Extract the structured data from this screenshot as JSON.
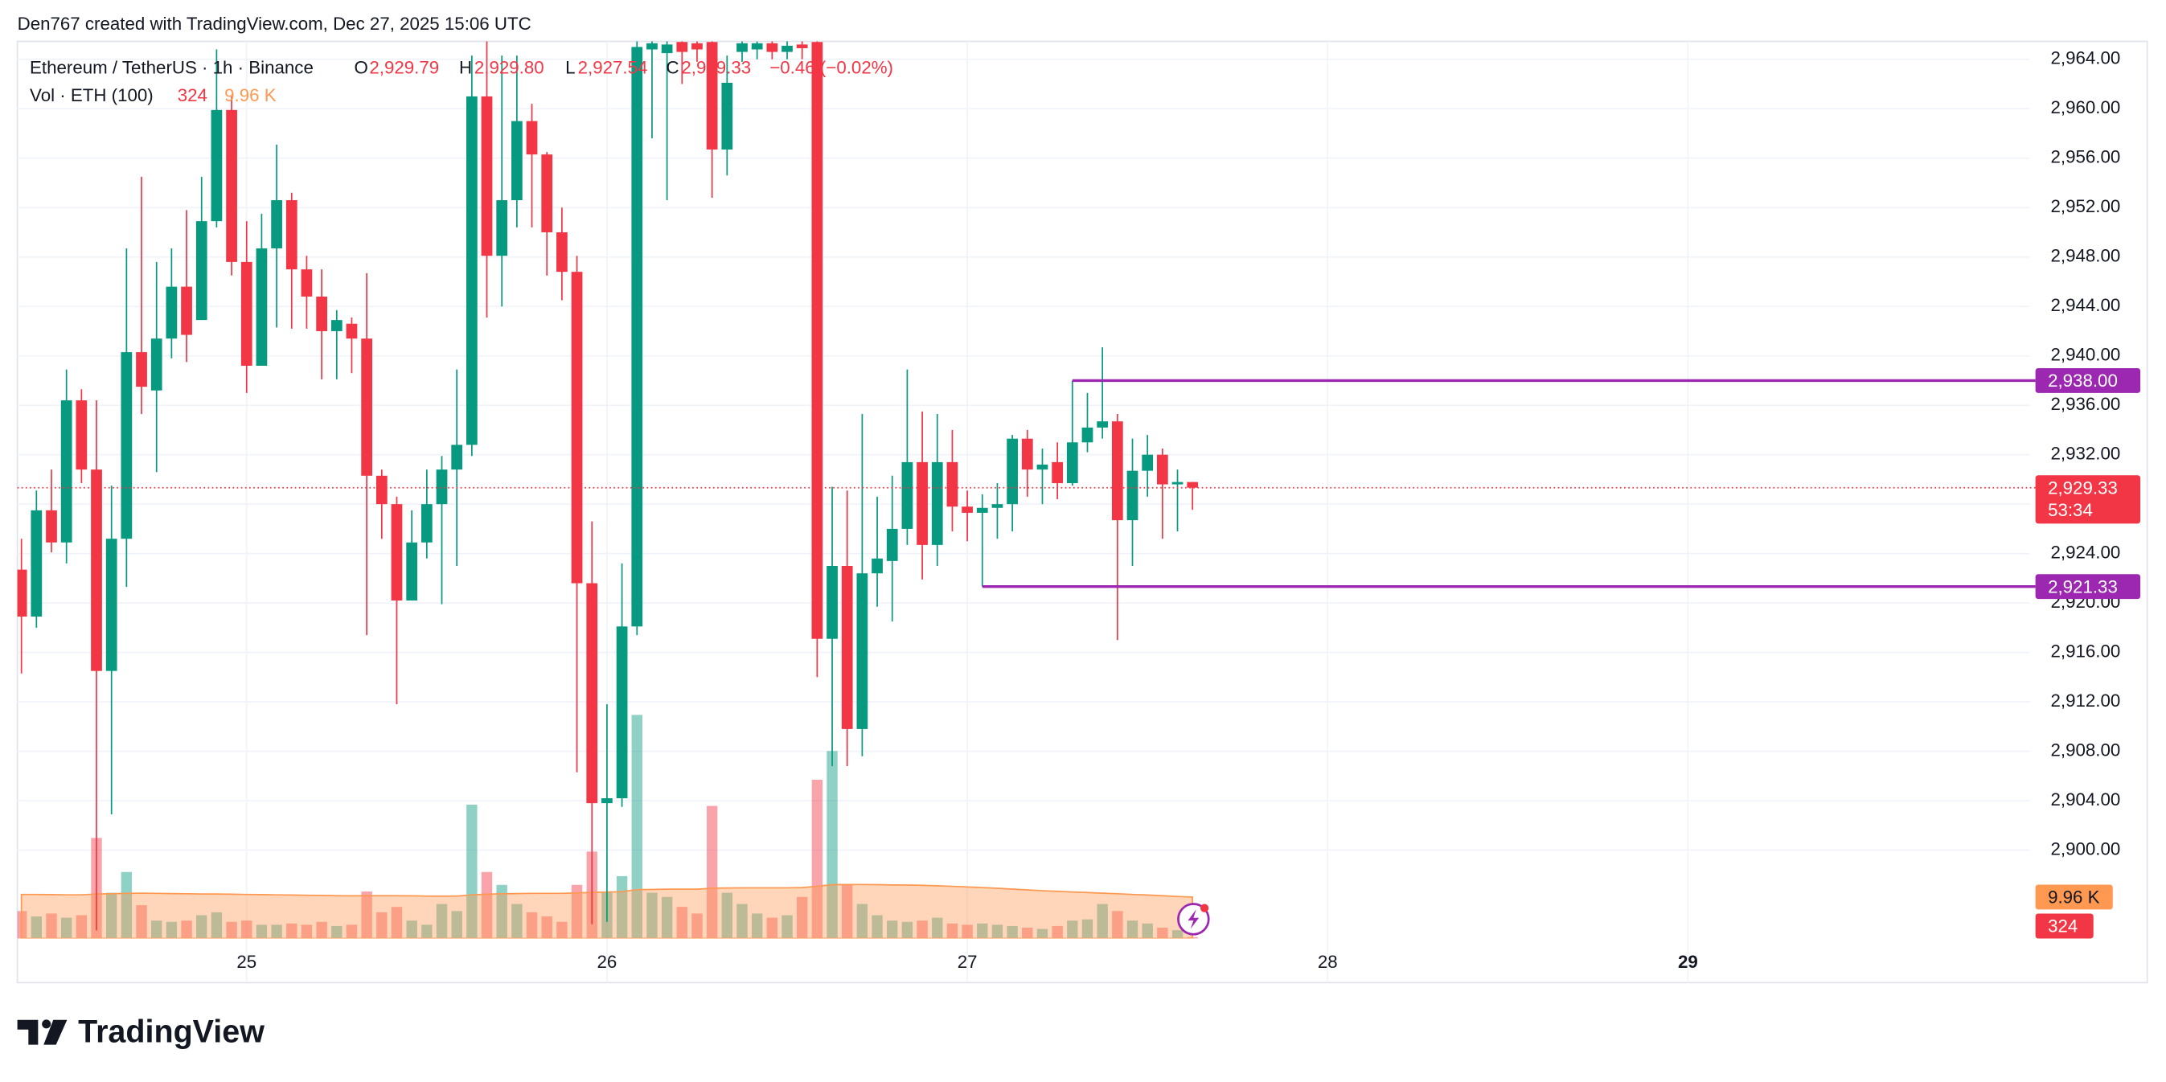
{
  "header": {
    "credit": "Den767 created with TradingView.com, Dec 27, 2025 15:06 UTC"
  },
  "footer": {
    "brand": "TradingView"
  },
  "chart_data": {
    "type": "candlestick",
    "legend": {
      "symbol": "Ethereum / TetherUS · 1h · Binance",
      "open_key": "O",
      "high_key": "H",
      "low_key": "L",
      "close_key": "C",
      "open_label": "2,929.79",
      "high_label": "2,929.80",
      "low_label": "2,927.54",
      "close_label": "2,929.33",
      "change": "−0.46 (−0.02%)",
      "volume_title": "Vol · ETH (100)"
    },
    "categories": [
      null,
      null,
      null,
      null,
      null,
      null,
      null,
      null,
      null,
      null,
      null,
      null,
      null,
      null,
      null,
      "25",
      null,
      null,
      null,
      null,
      null,
      null,
      null,
      null,
      null,
      null,
      null,
      null,
      null,
      null,
      null,
      null,
      null,
      null,
      null,
      null,
      null,
      null,
      null,
      "26",
      null,
      null,
      null,
      null,
      null,
      null,
      null,
      null,
      null,
      null,
      null,
      null,
      null,
      null,
      null,
      null,
      null,
      null,
      null,
      null,
      null,
      null,
      null,
      "27",
      null,
      null,
      null,
      null,
      null,
      null,
      null,
      null,
      null,
      null,
      null,
      null,
      null,
      null,
      null,
      null,
      null,
      null,
      null,
      null,
      null,
      null,
      null,
      "28",
      null,
      null,
      null,
      null,
      null,
      null,
      null,
      null,
      null,
      null,
      null,
      null,
      null,
      null,
      null,
      null,
      null,
      null,
      null,
      null,
      null,
      null,
      null,
      "29",
      null,
      null,
      null,
      null,
      null,
      null,
      null,
      null,
      null,
      null,
      null,
      null,
      null,
      null,
      null,
      null,
      null,
      null,
      null,
      null,
      null,
      null
    ],
    "open": [
      2922.7,
      2918.9,
      2927.5,
      2924.9,
      2936.4,
      2930.8,
      2914.5,
      2925.2,
      2940.3,
      2937.2,
      2941.4,
      2945.6,
      2942.9,
      2950.9,
      2959.9,
      2947.6,
      2939.2,
      2948.7,
      2952.6,
      2947.0,
      2944.8,
      2942.0,
      2942.6,
      2941.4,
      2930.3,
      2928.0,
      2920.2,
      2924.9,
      2928.0,
      2930.8,
      2932.8,
      2961.0,
      2948.1,
      2952.6,
      2959.0,
      2956.3,
      2950.0,
      2946.8,
      2921.6,
      2903.8,
      2904.2,
      2918.1,
      2964.8,
      2964.5,
      2965.4,
      2965.3,
      2965.4,
      2956.7,
      2964.6,
      2964.8,
      2965.3,
      2964.6,
      2965.2,
      2965.4,
      2917.1,
      2923.0,
      2909.8,
      2922.4,
      2923.4,
      2926.0,
      2931.4,
      2924.7,
      2931.4,
      2927.8,
      2927.3,
      2927.7,
      2928.0,
      2933.3,
      2930.8,
      2931.4,
      2929.7,
      2933.0,
      2934.2,
      2934.7,
      2926.7,
      2930.7,
      2932.0,
      2929.6,
      2929.79,
      null,
      null,
      null,
      null,
      null,
      null,
      null,
      null,
      null,
      null,
      null,
      null,
      null,
      null,
      null,
      null,
      null,
      null,
      null,
      null,
      null,
      null,
      null,
      null,
      null,
      null,
      null,
      null,
      null,
      null,
      null,
      null,
      null,
      null,
      null,
      null,
      null,
      null,
      null,
      null,
      null,
      null,
      null,
      null,
      null,
      null,
      null,
      null,
      null,
      null,
      null,
      null,
      null,
      null,
      null
    ],
    "high": [
      2925.2,
      2929.1,
      2930.8,
      2938.9,
      2937.3,
      2936.4,
      2929.5,
      2948.7,
      2954.5,
      2947.6,
      2948.7,
      2951.8,
      2954.5,
      2964.8,
      2961.0,
      2950.9,
      2951.5,
      2957.1,
      2953.2,
      2948.1,
      2947.0,
      2943.7,
      2943.1,
      2946.7,
      2930.8,
      2928.6,
      2927.5,
      2930.8,
      2931.9,
      2938.9,
      2964.3,
      2966.0,
      2964.3,
      2964.3,
      2960.4,
      2956.5,
      2952.0,
      2948.1,
      2926.6,
      2911.8,
      2923.2,
      2966.0,
      2966.0,
      2966.0,
      2966.0,
      2966.0,
      2966.0,
      2964.3,
      2966.0,
      2966.0,
      2966.0,
      2966.0,
      2966.0,
      2966.0,
      2929.4,
      2929.1,
      2935.3,
      2928.6,
      2930.3,
      2938.9,
      2935.5,
      2935.3,
      2934.0,
      2929.1,
      2928.8,
      2929.7,
      2933.6,
      2934.0,
      2932.5,
      2933.0,
      2938.0,
      2937.0,
      2940.7,
      2935.3,
      2933.3,
      2933.6,
      2932.5,
      2930.8,
      2929.8,
      null,
      null,
      null,
      null,
      null,
      null,
      null,
      null,
      null,
      null,
      null,
      null,
      null,
      null,
      null,
      null,
      null,
      null,
      null,
      null,
      null,
      null,
      null,
      null,
      null,
      null,
      null,
      null,
      null,
      null,
      null,
      null,
      null,
      null,
      null,
      null,
      null,
      null,
      null,
      null,
      null,
      null,
      null,
      null,
      null,
      null,
      null,
      null,
      null,
      null,
      null,
      null,
      null,
      null,
      null
    ],
    "low": [
      2914.3,
      2918.0,
      2924.1,
      2923.2,
      2929.7,
      2893.5,
      2902.9,
      2921.3,
      2935.3,
      2930.6,
      2939.8,
      2939.5,
      2942.9,
      2950.4,
      2946.5,
      2937.0,
      2939.2,
      2942.3,
      2942.2,
      2942.2,
      2938.1,
      2938.1,
      2938.6,
      2917.4,
      2925.2,
      2911.8,
      2920.2,
      2923.6,
      2919.9,
      2923.0,
      2931.9,
      2943.1,
      2944.0,
      2950.4,
      2950.4,
      2946.5,
      2944.5,
      2906.3,
      2894.0,
      2894.2,
      2903.5,
      2917.4,
      2957.6,
      2952.6,
      2962.0,
      2963.8,
      2952.8,
      2954.6,
      2963.8,
      2964.0,
      2964.0,
      2964.0,
      2964.0,
      2914.0,
      2906.8,
      2906.8,
      2907.6,
      2919.7,
      2918.5,
      2924.7,
      2921.9,
      2923.0,
      2925.8,
      2925.0,
      2921.33,
      2925.2,
      2925.8,
      2928.6,
      2928.0,
      2928.4,
      2929.5,
      2932.2,
      2933.3,
      2917.0,
      2923.0,
      2928.6,
      2925.2,
      2925.8,
      2927.54,
      null,
      null,
      null,
      null,
      null,
      null,
      null,
      null,
      null,
      null,
      null,
      null,
      null,
      null,
      null,
      null,
      null,
      null,
      null,
      null,
      null,
      null,
      null,
      null,
      null,
      null,
      null,
      null,
      null,
      null,
      null,
      null,
      null,
      null,
      null,
      null,
      null,
      null,
      null,
      null,
      null,
      null,
      null,
      null,
      null,
      null,
      null,
      null,
      null,
      null,
      null,
      null,
      null,
      null,
      null
    ],
    "close": [
      2918.9,
      2927.5,
      2924.9,
      2936.4,
      2930.8,
      2914.5,
      2925.2,
      2940.3,
      2937.5,
      2941.4,
      2945.6,
      2941.7,
      2950.9,
      2959.9,
      2947.6,
      2939.2,
      2948.7,
      2952.6,
      2947.0,
      2944.8,
      2942.0,
      2942.9,
      2941.4,
      2930.3,
      2928.0,
      2920.2,
      2924.9,
      2928.0,
      2930.8,
      2932.8,
      2961.0,
      2948.1,
      2952.6,
      2959.0,
      2956.3,
      2950.0,
      2946.8,
      2921.6,
      2903.8,
      2904.2,
      2918.1,
      2965.0,
      2965.3,
      2965.2,
      2964.6,
      2964.8,
      2956.7,
      2962.1,
      2965.3,
      2965.3,
      2964.6,
      2965.1,
      2964.9,
      2917.1,
      2923.0,
      2909.8,
      2922.4,
      2923.6,
      2926.0,
      2931.4,
      2924.7,
      2931.4,
      2927.8,
      2927.3,
      2927.7,
      2928.0,
      2933.3,
      2930.8,
      2931.2,
      2929.7,
      2933.0,
      2934.2,
      2934.7,
      2926.7,
      2930.7,
      2932.0,
      2929.6,
      2929.79,
      2929.33,
      null,
      null,
      null,
      null,
      null,
      null,
      null,
      null,
      null,
      null,
      null,
      null,
      null,
      null,
      null,
      null,
      null,
      null,
      null,
      null,
      null,
      null,
      null,
      null,
      null,
      null,
      null,
      null,
      null,
      null,
      null,
      null,
      null,
      null,
      null,
      null,
      null,
      null,
      null,
      null,
      null,
      null,
      null,
      null,
      null,
      null,
      null,
      null,
      null,
      null,
      null,
      null,
      null,
      null,
      null
    ],
    "volume": [
      6600,
      5300,
      6000,
      5000,
      5600,
      24200,
      11000,
      16000,
      8000,
      4300,
      4000,
      4300,
      5600,
      6300,
      4000,
      4300,
      3300,
      3300,
      3600,
      3300,
      4000,
      3000,
      3300,
      11300,
      6300,
      7600,
      4300,
      3300,
      8300,
      6600,
      32200,
      16000,
      12900,
      8300,
      6300,
      5300,
      4000,
      12900,
      20900,
      11000,
      15000,
      53800,
      11000,
      10000,
      7600,
      6000,
      31900,
      11000,
      8300,
      6000,
      5000,
      5600,
      10000,
      38200,
      45100,
      12900,
      8300,
      5600,
      4300,
      4000,
      4300,
      5000,
      3600,
      3300,
      3600,
      3300,
      3000,
      2600,
      2300,
      3000,
      4300,
      4600,
      8300,
      6600,
      4300,
      3600,
      2600,
      2000,
      324,
      null,
      null,
      null,
      null,
      null,
      null,
      null,
      null,
      null,
      null,
      null,
      null,
      null,
      null,
      null,
      null,
      null,
      null,
      null,
      null,
      null,
      null,
      null,
      null,
      null,
      null,
      null,
      null,
      null,
      null,
      null,
      null,
      null,
      null,
      null,
      null,
      null,
      null,
      null,
      null,
      null,
      null,
      null,
      null,
      null,
      null,
      null,
      null,
      null,
      null,
      null,
      null,
      null,
      null,
      null
    ],
    "volume_ma": [
      10600,
      10600,
      10550,
      10500,
      10500,
      10700,
      10750,
      10850,
      10900,
      10850,
      10800,
      10750,
      10700,
      10700,
      10650,
      10600,
      10550,
      10500,
      10450,
      10400,
      10350,
      10300,
      10250,
      10300,
      10300,
      10300,
      10250,
      10200,
      10200,
      10200,
      10500,
      10650,
      10750,
      10800,
      10850,
      10850,
      10850,
      10950,
      11100,
      11150,
      11250,
      11750,
      11800,
      11850,
      11850,
      11850,
      12100,
      12150,
      12200,
      12200,
      12200,
      12200,
      12250,
      12550,
      12950,
      13000,
      13000,
      12950,
      12900,
      12850,
      12800,
      12700,
      12550,
      12400,
      12250,
      12100,
      11900,
      11700,
      11500,
      11350,
      11200,
      11050,
      10900,
      10750,
      10600,
      10450,
      10300,
      10100,
      9960,
      null,
      null,
      null,
      null,
      null,
      null,
      null,
      null,
      null,
      null,
      null,
      null,
      null,
      null,
      null,
      null,
      null,
      null,
      null,
      null,
      null,
      null,
      null,
      null,
      null,
      null,
      null,
      null,
      null,
      null,
      null,
      null,
      null,
      null,
      null,
      null,
      null,
      null,
      null,
      null,
      null,
      null,
      null,
      null,
      null,
      null,
      null,
      null,
      null,
      null,
      null,
      null,
      null,
      null,
      null
    ],
    "volume_ma_label": "9.96 K",
    "countdown": "53:34",
    "up_color": "#089981",
    "down_color": "#f23645",
    "volume_ma_color": "#ff9850",
    "hline_color": "#9c27b0",
    "hlines": [
      {
        "value": 2938.0,
        "label": "2,938.00"
      },
      {
        "value": 2921.33,
        "label": "2,921.33"
      }
    ],
    "ylim": [
      2892.85,
      2965.45
    ],
    "yticks": [
      {
        "value": 2900,
        "label": "2,900.00"
      },
      {
        "value": 2904,
        "label": "2,904.00"
      },
      {
        "value": 2908,
        "label": "2,908.00"
      },
      {
        "value": 2912,
        "label": "2,912.00"
      },
      {
        "value": 2916,
        "label": "2,916.00"
      },
      {
        "value": 2920,
        "label": "2,920.00"
      },
      {
        "value": 2924,
        "label": "2,924.00"
      },
      {
        "value": 2928,
        "label": "2,928.00"
      },
      {
        "value": 2932,
        "label": "2,932.00"
      },
      {
        "value": 2936,
        "label": "2,936.00"
      },
      {
        "value": 2940,
        "label": "2,940.00"
      },
      {
        "value": 2944,
        "label": "2,944.00"
      },
      {
        "value": 2948,
        "label": "2,948.00"
      },
      {
        "value": 2952,
        "label": "2,952.00"
      },
      {
        "value": 2956,
        "label": "2,956.00"
      },
      {
        "value": 2960,
        "label": "2,960.00"
      },
      {
        "value": 2964,
        "label": "2,964.00"
      }
    ],
    "grid": true
  }
}
